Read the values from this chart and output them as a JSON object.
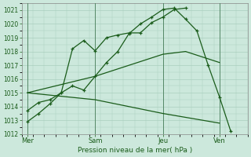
{
  "background_color": "#cce8dc",
  "grid_color": "#aacfbe",
  "line_color": "#1a5c1a",
  "xlabel": "Pression niveau de la mer( hPa )",
  "ylim": [
    1012,
    1021.5
  ],
  "yticks": [
    1012,
    1013,
    1014,
    1015,
    1016,
    1017,
    1018,
    1019,
    1020,
    1021
  ],
  "xtick_labels": [
    "Mer",
    "Sam",
    "Jeu",
    "Ven"
  ],
  "xtick_positions": [
    0,
    6,
    12,
    17
  ],
  "xlim": [
    -0.5,
    19
  ],
  "series": [
    {
      "x": [
        0,
        1,
        2,
        3,
        4,
        5,
        6,
        7,
        8,
        9,
        10,
        11,
        12,
        13,
        14
      ],
      "y": [
        1013.7,
        1014.3,
        1014.5,
        1015.0,
        1018.2,
        1018.8,
        1018.05,
        1019.0,
        1019.2,
        1019.35,
        1019.35,
        1020.1,
        1020.5,
        1021.05,
        1021.15
      ],
      "marker": true
    },
    {
      "x": [
        0,
        1,
        2,
        3,
        4,
        5,
        6,
        7,
        8,
        9,
        10,
        11,
        12,
        13,
        14,
        15,
        16,
        17,
        18
      ],
      "y": [
        1012.9,
        1013.5,
        1014.2,
        1015.0,
        1015.5,
        1015.2,
        1016.2,
        1017.2,
        1018.0,
        1019.3,
        1020.0,
        1020.5,
        1021.05,
        1021.15,
        1020.35,
        1019.5,
        1017.0,
        1014.7,
        1012.2
      ],
      "marker": true
    },
    {
      "x": [
        0,
        6,
        12,
        14,
        17
      ],
      "y": [
        1015.0,
        1016.2,
        1017.8,
        1018.0,
        1017.2
      ],
      "marker": false
    },
    {
      "x": [
        0,
        6,
        12,
        17
      ],
      "y": [
        1015.0,
        1014.5,
        1013.5,
        1012.8
      ],
      "marker": false
    }
  ],
  "vline_positions": [
    0,
    6,
    12,
    17
  ]
}
